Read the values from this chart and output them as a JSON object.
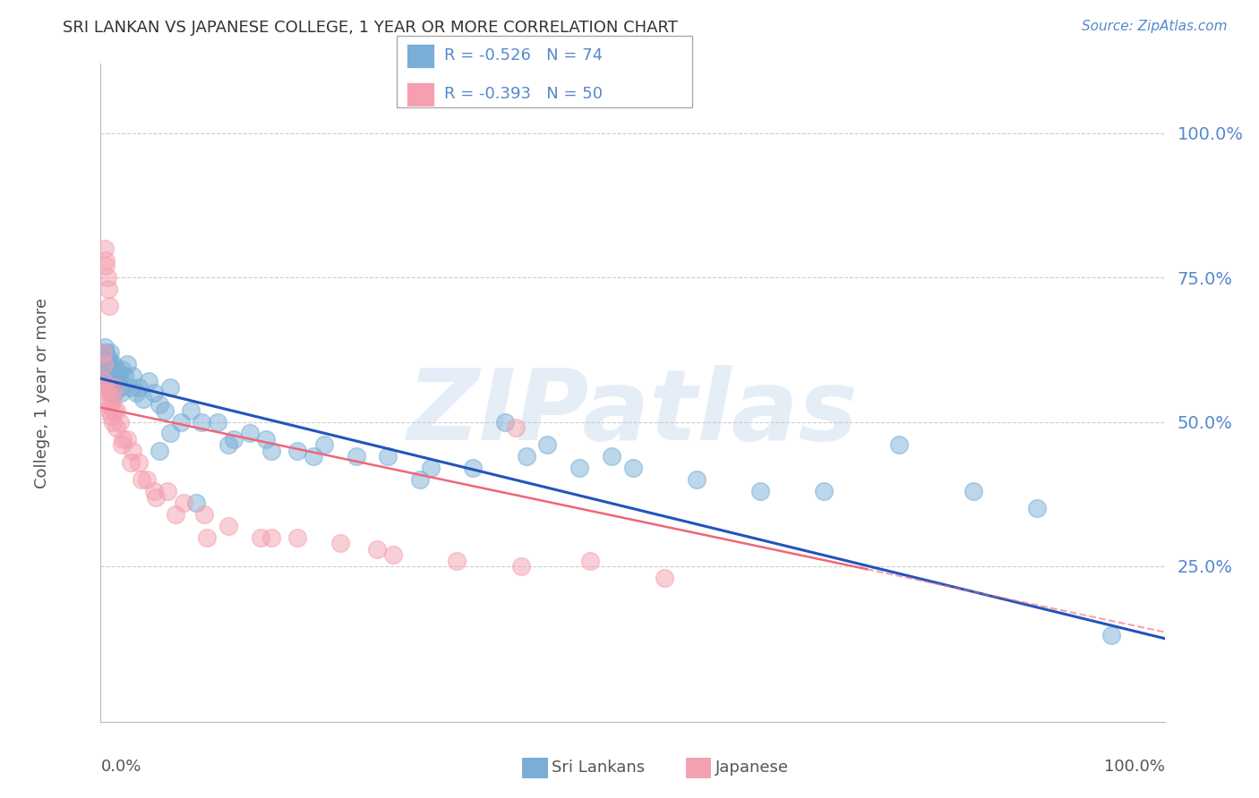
{
  "title": "SRI LANKAN VS JAPANESE COLLEGE, 1 YEAR OR MORE CORRELATION CHART",
  "source": "Source: ZipAtlas.com",
  "ylabel": "College, 1 year or more",
  "right_yticks": [
    "100.0%",
    "75.0%",
    "50.0%",
    "25.0%"
  ],
  "right_ytick_vals": [
    1.0,
    0.75,
    0.5,
    0.25
  ],
  "watermark": "ZIPatlas",
  "blue_color": "#7aaed6",
  "pink_color": "#f4a0b0",
  "line_blue": "#2255bb",
  "line_pink": "#ee6677",
  "grid_color": "#cccccc",
  "title_color": "#333333",
  "right_axis_color": "#5588cc",
  "background_color": "#ffffff",
  "xlim": [
    0,
    1
  ],
  "ylim": [
    -0.02,
    1.12
  ],
  "blue_line_y_start": 0.575,
  "blue_line_y_end": 0.125,
  "pink_line_y_start": 0.525,
  "pink_line_y_end": 0.245,
  "pink_line_x_end": 0.72,
  "blue_x": [
    0.002,
    0.003,
    0.003,
    0.004,
    0.004,
    0.004,
    0.005,
    0.005,
    0.005,
    0.006,
    0.006,
    0.007,
    0.007,
    0.008,
    0.008,
    0.009,
    0.009,
    0.01,
    0.01,
    0.011,
    0.012,
    0.013,
    0.014,
    0.015,
    0.016,
    0.017,
    0.018,
    0.019,
    0.02,
    0.022,
    0.025,
    0.028,
    0.03,
    0.033,
    0.036,
    0.04,
    0.045,
    0.05,
    0.055,
    0.06,
    0.065,
    0.075,
    0.085,
    0.095,
    0.11,
    0.125,
    0.14,
    0.16,
    0.185,
    0.21,
    0.24,
    0.27,
    0.31,
    0.35,
    0.4,
    0.45,
    0.5,
    0.56,
    0.62,
    0.68,
    0.75,
    0.82,
    0.88,
    0.95,
    0.2,
    0.3,
    0.42,
    0.48,
    0.38,
    0.155,
    0.065,
    0.12,
    0.09,
    0.055
  ],
  "blue_y": [
    0.62,
    0.6,
    0.58,
    0.63,
    0.61,
    0.59,
    0.62,
    0.6,
    0.58,
    0.61,
    0.59,
    0.6,
    0.58,
    0.61,
    0.57,
    0.62,
    0.58,
    0.59,
    0.55,
    0.6,
    0.57,
    0.55,
    0.58,
    0.59,
    0.57,
    0.58,
    0.56,
    0.55,
    0.59,
    0.58,
    0.6,
    0.56,
    0.58,
    0.55,
    0.56,
    0.54,
    0.57,
    0.55,
    0.53,
    0.52,
    0.56,
    0.5,
    0.52,
    0.5,
    0.5,
    0.47,
    0.48,
    0.45,
    0.45,
    0.46,
    0.44,
    0.44,
    0.42,
    0.42,
    0.44,
    0.42,
    0.42,
    0.4,
    0.38,
    0.38,
    0.46,
    0.38,
    0.35,
    0.13,
    0.44,
    0.4,
    0.46,
    0.44,
    0.5,
    0.47,
    0.48,
    0.46,
    0.36,
    0.45
  ],
  "pink_x": [
    0.002,
    0.003,
    0.003,
    0.004,
    0.004,
    0.005,
    0.005,
    0.006,
    0.007,
    0.008,
    0.008,
    0.009,
    0.01,
    0.011,
    0.012,
    0.013,
    0.015,
    0.018,
    0.021,
    0.025,
    0.03,
    0.036,
    0.043,
    0.052,
    0.063,
    0.078,
    0.097,
    0.12,
    0.15,
    0.185,
    0.225,
    0.275,
    0.335,
    0.395,
    0.46,
    0.53,
    0.39,
    0.26,
    0.16,
    0.1,
    0.07,
    0.05,
    0.038,
    0.028,
    0.02,
    0.015,
    0.011,
    0.008,
    0.006,
    0.004
  ],
  "pink_y": [
    0.62,
    0.6,
    0.57,
    0.56,
    0.8,
    0.78,
    0.77,
    0.75,
    0.73,
    0.7,
    0.55,
    0.53,
    0.51,
    0.54,
    0.52,
    0.56,
    0.52,
    0.5,
    0.47,
    0.47,
    0.45,
    0.43,
    0.4,
    0.37,
    0.38,
    0.36,
    0.34,
    0.32,
    0.3,
    0.3,
    0.29,
    0.27,
    0.26,
    0.25,
    0.26,
    0.23,
    0.49,
    0.28,
    0.3,
    0.3,
    0.34,
    0.38,
    0.4,
    0.43,
    0.46,
    0.49,
    0.5,
    0.52,
    0.53,
    0.56
  ]
}
